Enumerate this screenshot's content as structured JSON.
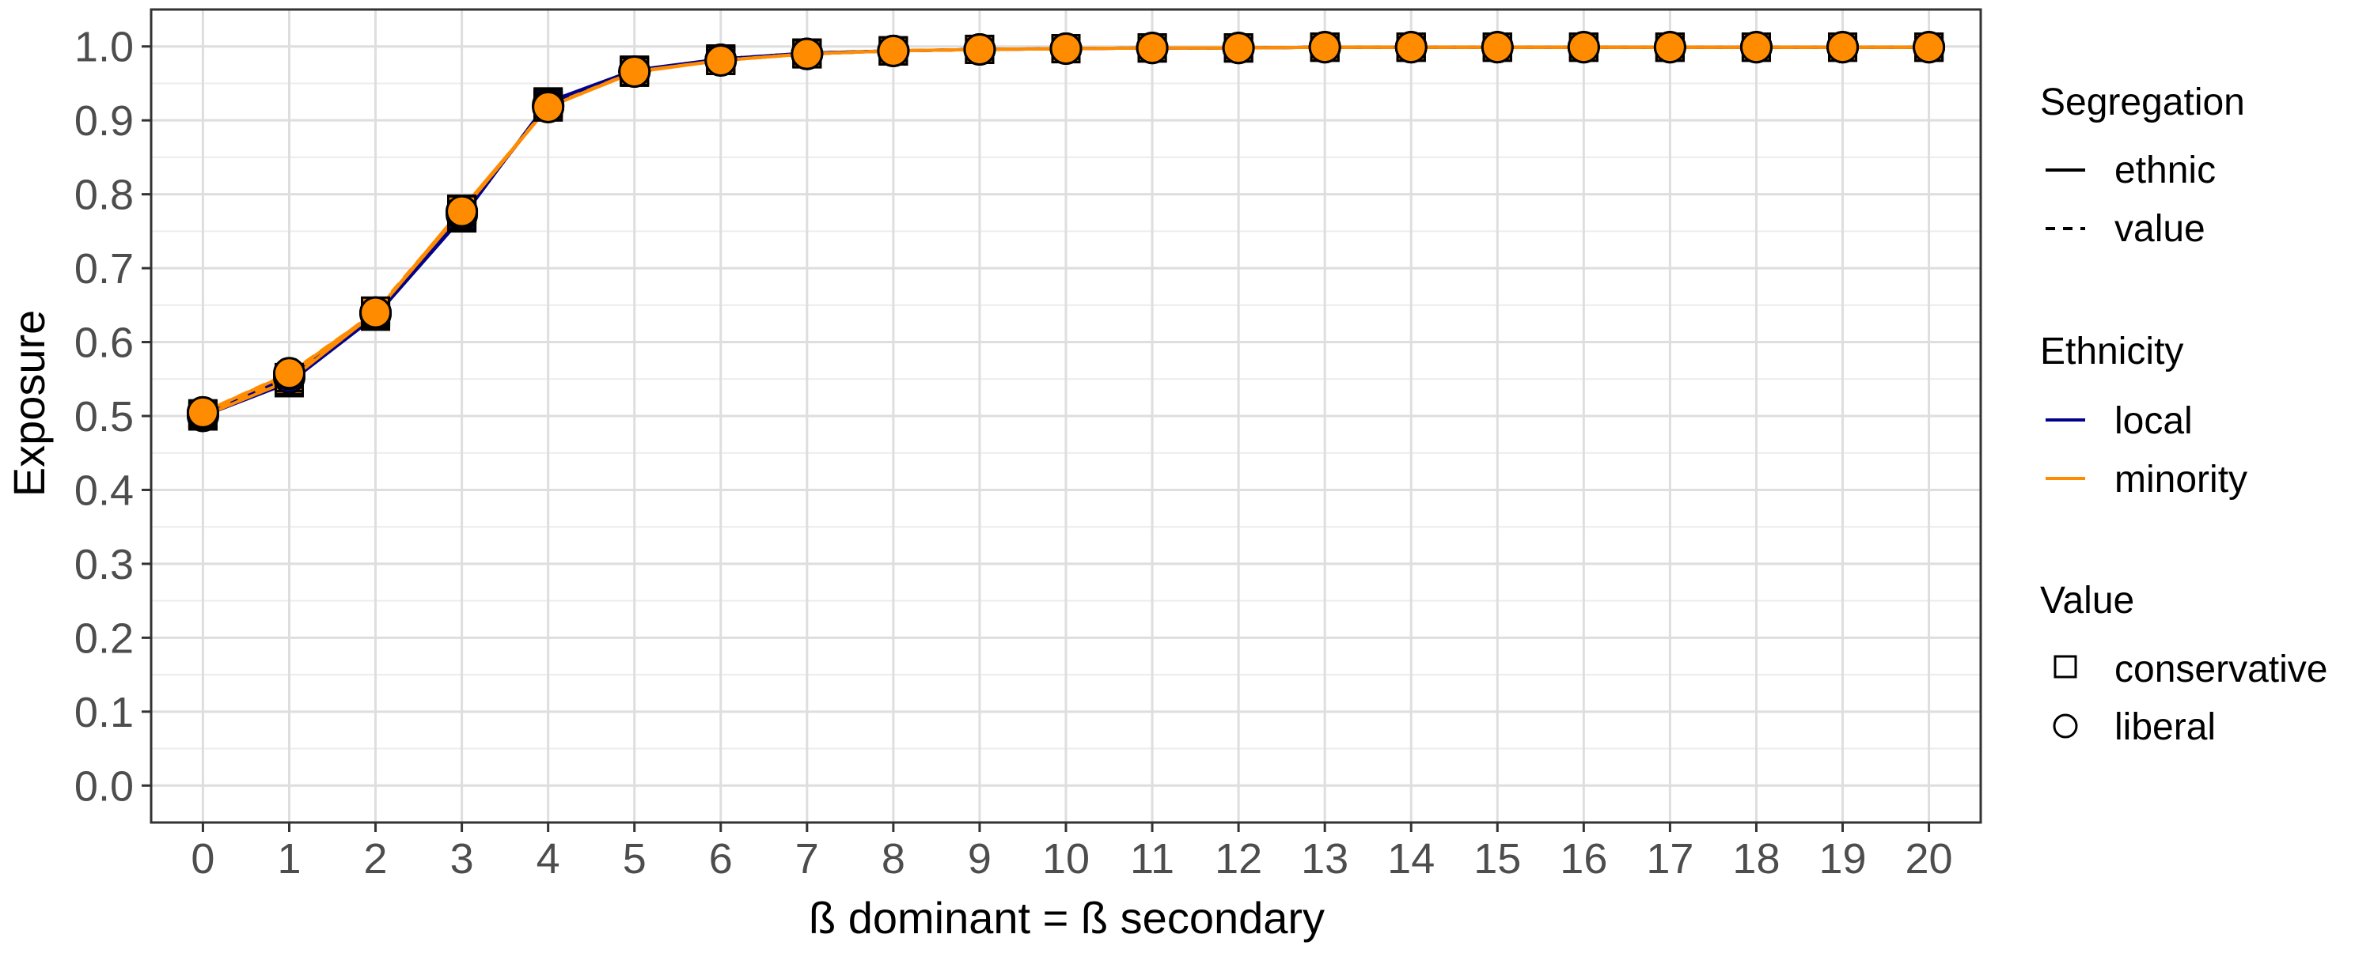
{
  "chart_data": {
    "type": "line",
    "xlabel": "ß dominant = ß secondary",
    "ylabel": "Exposure",
    "xlim": [
      -0.6,
      20.6
    ],
    "ylim": [
      -0.05,
      1.05
    ],
    "x_ticks": [
      0,
      1,
      2,
      3,
      4,
      5,
      6,
      7,
      8,
      9,
      10,
      11,
      12,
      13,
      14,
      15,
      16,
      17,
      18,
      19,
      20
    ],
    "y_ticks": [
      0.0,
      0.1,
      0.2,
      0.3,
      0.4,
      0.5,
      0.6,
      0.7,
      0.8,
      0.9,
      1.0
    ],
    "y_tick_labels": [
      "0.0",
      "0.1",
      "0.2",
      "0.3",
      "0.4",
      "0.5",
      "0.6",
      "0.7",
      "0.8",
      "0.9",
      "1.0"
    ],
    "grid": true,
    "legend_position": "right",
    "x": [
      0,
      1,
      2,
      3,
      4,
      5,
      6,
      7,
      8,
      9,
      10,
      11,
      12,
      13,
      14,
      15,
      16,
      17,
      18,
      19,
      20
    ],
    "series": [
      {
        "segregation": "ethnic",
        "ethnicity": "local",
        "value": "conservative",
        "color": "#00008B",
        "linestyle": "solid",
        "shape": "square",
        "values": [
          0.5,
          0.545,
          0.635,
          0.768,
          0.925,
          0.968,
          0.983,
          0.991,
          0.994,
          0.996,
          0.997,
          0.998,
          0.998,
          0.999,
          0.999,
          0.999,
          0.999,
          0.999,
          0.999,
          0.999,
          0.999
        ]
      },
      {
        "segregation": "ethnic",
        "ethnicity": "local",
        "value": "liberal",
        "color": "#00008B",
        "linestyle": "solid",
        "shape": "circle",
        "values": [
          0.5,
          0.553,
          0.638,
          0.772,
          0.921,
          0.966,
          0.982,
          0.99,
          0.994,
          0.996,
          0.997,
          0.998,
          0.998,
          0.999,
          0.999,
          0.999,
          0.999,
          0.999,
          0.999,
          0.999,
          0.999
        ]
      },
      {
        "segregation": "value",
        "ethnicity": "local",
        "value": "conservative",
        "color": "#00008B",
        "linestyle": "dashed",
        "shape": "square",
        "values": [
          0.503,
          0.548,
          0.637,
          0.771,
          0.923,
          0.967,
          0.983,
          0.991,
          0.994,
          0.996,
          0.997,
          0.998,
          0.998,
          0.999,
          0.999,
          0.999,
          0.999,
          0.999,
          0.999,
          0.999,
          0.999
        ]
      },
      {
        "segregation": "value",
        "ethnicity": "local",
        "value": "liberal",
        "color": "#00008B",
        "linestyle": "dashed",
        "shape": "circle",
        "values": [
          0.502,
          0.552,
          0.639,
          0.774,
          0.92,
          0.966,
          0.982,
          0.99,
          0.994,
          0.996,
          0.997,
          0.998,
          0.998,
          0.999,
          0.999,
          0.999,
          0.999,
          0.999,
          0.999,
          0.999,
          0.999
        ]
      },
      {
        "segregation": "ethnic",
        "ethnicity": "minority",
        "value": "conservative",
        "color": "#FF8C00",
        "linestyle": "solid",
        "shape": "square",
        "values": [
          0.5,
          0.548,
          0.64,
          0.78,
          0.918,
          0.965,
          0.981,
          0.99,
          0.994,
          0.996,
          0.997,
          0.998,
          0.998,
          0.999,
          0.999,
          0.999,
          0.999,
          0.999,
          0.999,
          0.999,
          0.999
        ]
      },
      {
        "segregation": "ethnic",
        "ethnicity": "minority",
        "value": "liberal",
        "color": "#FF8C00",
        "linestyle": "solid",
        "shape": "circle",
        "values": [
          0.505,
          0.557,
          0.64,
          0.777,
          0.918,
          0.966,
          0.981,
          0.99,
          0.994,
          0.996,
          0.997,
          0.998,
          0.998,
          0.999,
          0.999,
          0.999,
          0.999,
          0.999,
          0.999,
          0.999,
          0.999
        ]
      },
      {
        "segregation": "value",
        "ethnicity": "minority",
        "value": "conservative",
        "color": "#FF8C00",
        "linestyle": "dashed",
        "shape": "square",
        "values": [
          0.502,
          0.552,
          0.642,
          0.779,
          0.919,
          0.966,
          0.981,
          0.99,
          0.994,
          0.996,
          0.997,
          0.998,
          0.998,
          0.999,
          0.999,
          0.999,
          0.999,
          0.999,
          0.999,
          0.999,
          0.999
        ]
      },
      {
        "segregation": "value",
        "ethnicity": "minority",
        "value": "liberal",
        "color": "#FF8C00",
        "linestyle": "dashed",
        "shape": "circle",
        "values": [
          0.505,
          0.558,
          0.64,
          0.777,
          0.918,
          0.966,
          0.981,
          0.99,
          0.994,
          0.996,
          0.997,
          0.998,
          0.998,
          0.999,
          0.999,
          0.999,
          0.999,
          0.999,
          0.999,
          0.999,
          0.999
        ]
      }
    ],
    "legend": {
      "segregation": {
        "title": "Segregation",
        "items": [
          {
            "label": "ethnic",
            "linestyle": "solid"
          },
          {
            "label": "value",
            "linestyle": "dashed"
          }
        ]
      },
      "ethnicity": {
        "title": "Ethnicity",
        "items": [
          {
            "label": "local",
            "color": "#00008B"
          },
          {
            "label": "minority",
            "color": "#FF8C00"
          }
        ]
      },
      "value": {
        "title": "Value",
        "items": [
          {
            "label": "conservative",
            "shape": "square"
          },
          {
            "label": "liberal",
            "shape": "circle"
          }
        ]
      }
    }
  }
}
